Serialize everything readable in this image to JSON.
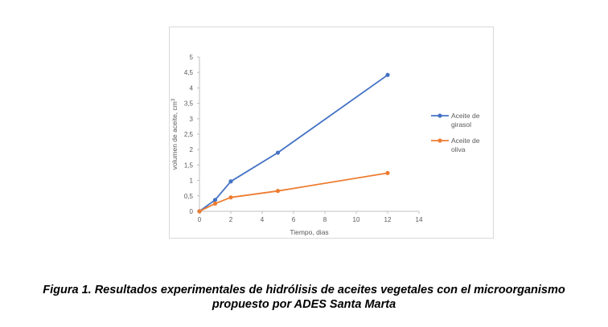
{
  "chart_data": {
    "type": "line",
    "x": [
      0,
      1,
      2,
      5,
      12
    ],
    "series": [
      {
        "name": "Aceite de girasol",
        "legend_lines": [
          "Aceite de",
          "girasol"
        ],
        "color": "#4472C4",
        "values": [
          0,
          0.37,
          0.97,
          1.9,
          4.42
        ]
      },
      {
        "name": "Aceite de oliva",
        "legend_lines": [
          "Aceite de",
          "oliva"
        ],
        "color": "#ED7D31",
        "values": [
          0,
          0.25,
          0.45,
          0.66,
          1.24
        ]
      }
    ],
    "xlabel": "Tiempo, dias",
    "ylabel": "volumen de aceite, cm",
    "ylabel_sup": "3",
    "xlim": [
      0,
      14
    ],
    "ylim": [
      0,
      5
    ],
    "x_ticks": [
      "0",
      "2",
      "4",
      "6",
      "8",
      "10",
      "12",
      "14"
    ],
    "y_ticks": [
      "0",
      "0,5",
      "1",
      "1,5",
      "2",
      "2,5",
      "3",
      "3,5",
      "4",
      "4,5",
      "5"
    ],
    "grid": false,
    "legend_position": "right"
  },
  "caption": {
    "line1": "Figura 1. Resultados experimentales de hidrólisis de aceites vegetales con el microorganismo",
    "line2": "propuesto por ADES Santa Marta"
  }
}
